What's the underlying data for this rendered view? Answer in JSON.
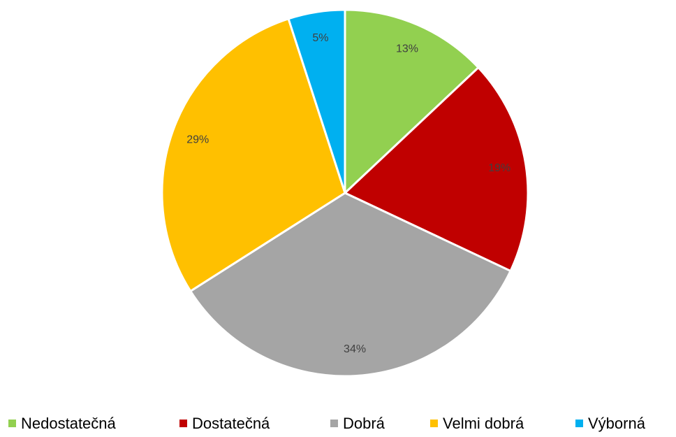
{
  "chart_data": {
    "type": "pie",
    "categories": [
      "Nedostatečná",
      "Dostatečná",
      "Dobrá",
      "Velmi dobrá",
      "Výborná"
    ],
    "values": [
      13,
      19,
      34,
      29,
      5
    ],
    "value_labels": [
      "13%",
      "19%",
      "34%",
      "29%",
      "5%"
    ],
    "colors": [
      "#92d050",
      "#c00000",
      "#a5a5a5",
      "#ffc000",
      "#00b0f0"
    ],
    "legend": "bottom"
  }
}
